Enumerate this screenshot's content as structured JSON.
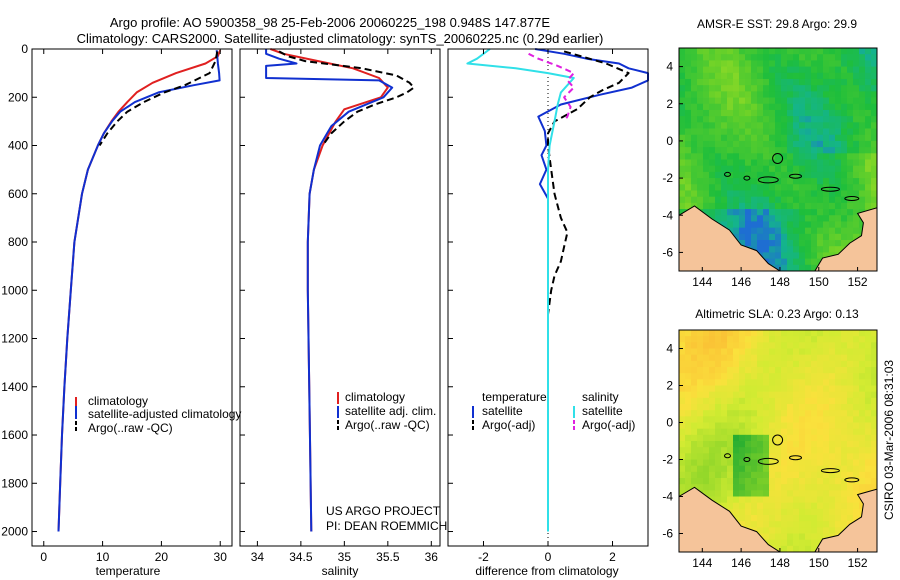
{
  "header": {
    "title_line1": "Argo profile: AO 5900358_98 25-Feb-2006 20060225_198 0.948S 147.877E",
    "title_line2": "Climatology: CARS2000. Satellite-adjusted climatology: synTS_20060225.nc (0.29d earlier)"
  },
  "credits": {
    "project": "US ARGO PROJECT",
    "pi": "PI: DEAN ROEMMICH",
    "stamp": "CSIRO 03-Mar-2006 08:31:03"
  },
  "colors": {
    "climatology": "#e02020",
    "satellite": "#1030d0",
    "argo": "#000000",
    "salinity_satellite": "#30e0e8",
    "salinity_argo": "#e020e0",
    "land": "#f5c49a"
  },
  "chart_data": [
    {
      "id": "temperature",
      "type": "line",
      "title": "",
      "xlabel": "temperature",
      "ylabel": "",
      "xlim": [
        -2,
        32
      ],
      "ylim": [
        2060,
        0
      ],
      "x_ticks": [
        "0",
        "10",
        "20",
        "30"
      ],
      "x_tick_values": [
        0,
        10,
        20,
        30
      ],
      "y_ticks": [
        "0",
        "200",
        "400",
        "600",
        "800",
        "1000",
        "1200",
        "1400",
        "1600",
        "1800",
        "2000"
      ],
      "y_tick_values": [
        0,
        200,
        400,
        600,
        800,
        1000,
        1200,
        1400,
        1600,
        1800,
        2000
      ],
      "legend": [
        "climatology",
        "satellite-adjusted climatology",
        "Argo(..raw -QC)"
      ],
      "series": [
        {
          "name": "climatology",
          "color": "#e02020",
          "dash": "",
          "depth": [
            5,
            30,
            60,
            100,
            140,
            180,
            220,
            260,
            300,
            350,
            400,
            500,
            600,
            800,
            1000,
            1200,
            1400,
            1600,
            1800,
            2000
          ],
          "values": [
            30,
            29.6,
            27.5,
            22.5,
            18.5,
            15.8,
            14.2,
            12.7,
            11.5,
            10.2,
            9.2,
            7.5,
            6.5,
            5.2,
            4.6,
            4.0,
            3.5,
            3.1,
            2.8,
            2.5
          ]
        },
        {
          "name": "satellite-adjusted climatology",
          "color": "#1030d0",
          "dash": "",
          "depth": [
            5,
            60,
            100,
            130,
            150,
            180,
            220,
            260,
            300,
            350,
            400,
            500,
            600,
            800,
            1000,
            1200,
            1400,
            1600,
            1800,
            2000
          ],
          "values": [
            29.4,
            29.6,
            29.8,
            29.9,
            25.5,
            19.5,
            15.5,
            13.0,
            11.6,
            10.2,
            9.2,
            7.5,
            6.5,
            5.2,
            4.6,
            4.0,
            3.5,
            3.1,
            2.8,
            2.5
          ]
        },
        {
          "name": "Argo(..raw -QC)",
          "color": "#000000",
          "dash": "7,4",
          "depth": [
            10,
            50,
            100,
            150,
            180,
            220,
            260,
            300,
            350,
            400
          ],
          "values": [
            29.5,
            29.2,
            28.2,
            24.0,
            20.5,
            17.0,
            14.2,
            12.5,
            10.8,
            9.5
          ]
        }
      ]
    },
    {
      "id": "salinity",
      "type": "line",
      "title": "",
      "xlabel": "salinity",
      "ylabel": "",
      "xlim": [
        33.8,
        36.1
      ],
      "ylim": [
        2060,
        0
      ],
      "x_ticks": [
        "34",
        "34.5",
        "35",
        "35.5",
        "36"
      ],
      "x_tick_values": [
        34,
        34.5,
        35,
        35.5,
        36
      ],
      "y_ticks": [],
      "y_tick_values": [],
      "legend": [
        "climatology",
        "satellite adj. clim.",
        "Argo(..raw -QC)"
      ],
      "series": [
        {
          "name": "climatology",
          "color": "#e02020",
          "dash": "",
          "depth": [
            0,
            20,
            50,
            80,
            120,
            160,
            200,
            250,
            300,
            400,
            500,
            600,
            800,
            1000,
            1500,
            2000
          ],
          "values": [
            34.15,
            34.3,
            34.7,
            35.1,
            35.4,
            35.5,
            35.42,
            35.0,
            34.9,
            34.75,
            34.65,
            34.6,
            34.58,
            34.58,
            34.6,
            34.62
          ]
        },
        {
          "name": "satellite adj. clim.",
          "color": "#1030d0",
          "dash": "",
          "depth": [
            0,
            20,
            40,
            60,
            70,
            120,
            130,
            160,
            200,
            260,
            320,
            400,
            500,
            600,
            800,
            1000,
            1500,
            2000
          ],
          "values": [
            34.1,
            34.1,
            34.25,
            34.45,
            34.1,
            34.1,
            35.4,
            35.55,
            35.45,
            35.05,
            34.85,
            34.72,
            34.65,
            34.6,
            34.58,
            34.58,
            34.6,
            34.62
          ]
        },
        {
          "name": "Argo(..raw -QC)",
          "color": "#000000",
          "dash": "7,4",
          "depth": [
            10,
            30,
            50,
            80,
            110,
            140,
            160,
            180,
            200,
            230,
            260,
            300,
            350,
            400
          ],
          "values": [
            34.25,
            34.35,
            34.55,
            35.2,
            35.6,
            35.75,
            35.8,
            35.72,
            35.6,
            35.35,
            35.15,
            35.0,
            34.85,
            34.75
          ]
        }
      ]
    },
    {
      "id": "difference",
      "type": "line",
      "title": "",
      "xlabel": "difference from climatology",
      "ylabel": "",
      "xlim": [
        -3.1,
        3.1
      ],
      "ylim": [
        2060,
        0
      ],
      "x_ticks": [
        "-2",
        "0",
        "2"
      ],
      "x_tick_values": [
        -2,
        0,
        2
      ],
      "y_ticks": [],
      "y_tick_values": [],
      "legend_headers": [
        "temperature",
        "salinity"
      ],
      "legend": [
        "satellite",
        "Argo(-adj)",
        "satellite",
        "Argo(-adj)"
      ],
      "series": [
        {
          "name": "temperature satellite",
          "color": "#1030d0",
          "dash": "",
          "depth": [
            0,
            20,
            40,
            60,
            80,
            100,
            130,
            160,
            190,
            230,
            280,
            340,
            400,
            440,
            500,
            560,
            620,
            700,
            800,
            1000,
            1500,
            2000
          ],
          "values": [
            -0.4,
            0.5,
            1.2,
            2.2,
            2.5,
            3.1,
            3.1,
            2.6,
            1.6,
            0.4,
            -0.3,
            -0.1,
            -0.05,
            -0.2,
            -0.05,
            -0.25,
            0.0,
            0.0,
            0.0,
            0.0,
            0.0,
            0.0
          ]
        },
        {
          "name": "temperature Argo(-adj)",
          "color": "#000000",
          "dash": "7,4",
          "depth": [
            10,
            60,
            100,
            140,
            170,
            200,
            250,
            300,
            350,
            400,
            500,
            600,
            700,
            760,
            820,
            880,
            940,
            1000,
            1100
          ],
          "values": [
            0.5,
            1.8,
            2.5,
            2.2,
            1.7,
            1.3,
            0.9,
            0.2,
            0.0,
            0.0,
            0.1,
            0.2,
            0.4,
            0.6,
            0.5,
            0.4,
            0.2,
            0.1,
            0.0
          ]
        },
        {
          "name": "salinity satellite",
          "color": "#30e0e8",
          "dash": "",
          "depth": [
            0,
            40,
            60,
            80,
            100,
            120,
            150,
            180,
            230,
            300,
            400,
            500,
            700,
            1000,
            1500,
            2000
          ],
          "values": [
            -1.8,
            -2.2,
            -2.5,
            -1.0,
            0.0,
            0.8,
            0.6,
            0.4,
            0.3,
            0.2,
            0.05,
            0.0,
            0.0,
            0.0,
            0.0,
            0.0
          ]
        },
        {
          "name": "salinity Argo(-adj)",
          "color": "#e020e0",
          "dash": "6,4",
          "depth": [
            20,
            40,
            70,
            100,
            130,
            160,
            200,
            240,
            280,
            300
          ],
          "values": [
            -0.6,
            -0.3,
            0.3,
            0.8,
            0.6,
            0.8,
            0.5,
            0.7,
            0.6,
            0.5
          ]
        }
      ]
    },
    {
      "id": "sst_map",
      "type": "heatmap",
      "title": "AMSR-E SST: 29.8 Argo: 29.9",
      "xlabel": "",
      "ylabel": "",
      "xlim": [
        142.8,
        153.0
      ],
      "ylim": [
        -7.0,
        5.0
      ],
      "x_ticks": [
        "144",
        "146",
        "148",
        "150",
        "152"
      ],
      "x_tick_values": [
        144,
        146,
        148,
        150,
        152
      ],
      "y_ticks": [
        "4",
        "2",
        "0",
        "-2",
        "-4",
        "-6"
      ],
      "y_tick_values": [
        4,
        2,
        0,
        -2,
        -4,
        -6
      ],
      "marker": {
        "lon": 147.877,
        "lat": -0.948
      }
    },
    {
      "id": "sla_map",
      "type": "heatmap",
      "title": "Altimetric SLA: 0.23 Argo: 0.13",
      "xlabel": "",
      "ylabel": "",
      "xlim": [
        142.8,
        153.0
      ],
      "ylim": [
        -7.0,
        5.0
      ],
      "x_ticks": [
        "144",
        "146",
        "148",
        "150",
        "152"
      ],
      "x_tick_values": [
        144,
        146,
        148,
        150,
        152
      ],
      "y_ticks": [
        "4",
        "2",
        "0",
        "-2",
        "-4",
        "-6"
      ],
      "y_tick_values": [
        4,
        2,
        0,
        -2,
        -4,
        -6
      ],
      "marker": {
        "lon": 147.877,
        "lat": -0.948
      }
    }
  ]
}
